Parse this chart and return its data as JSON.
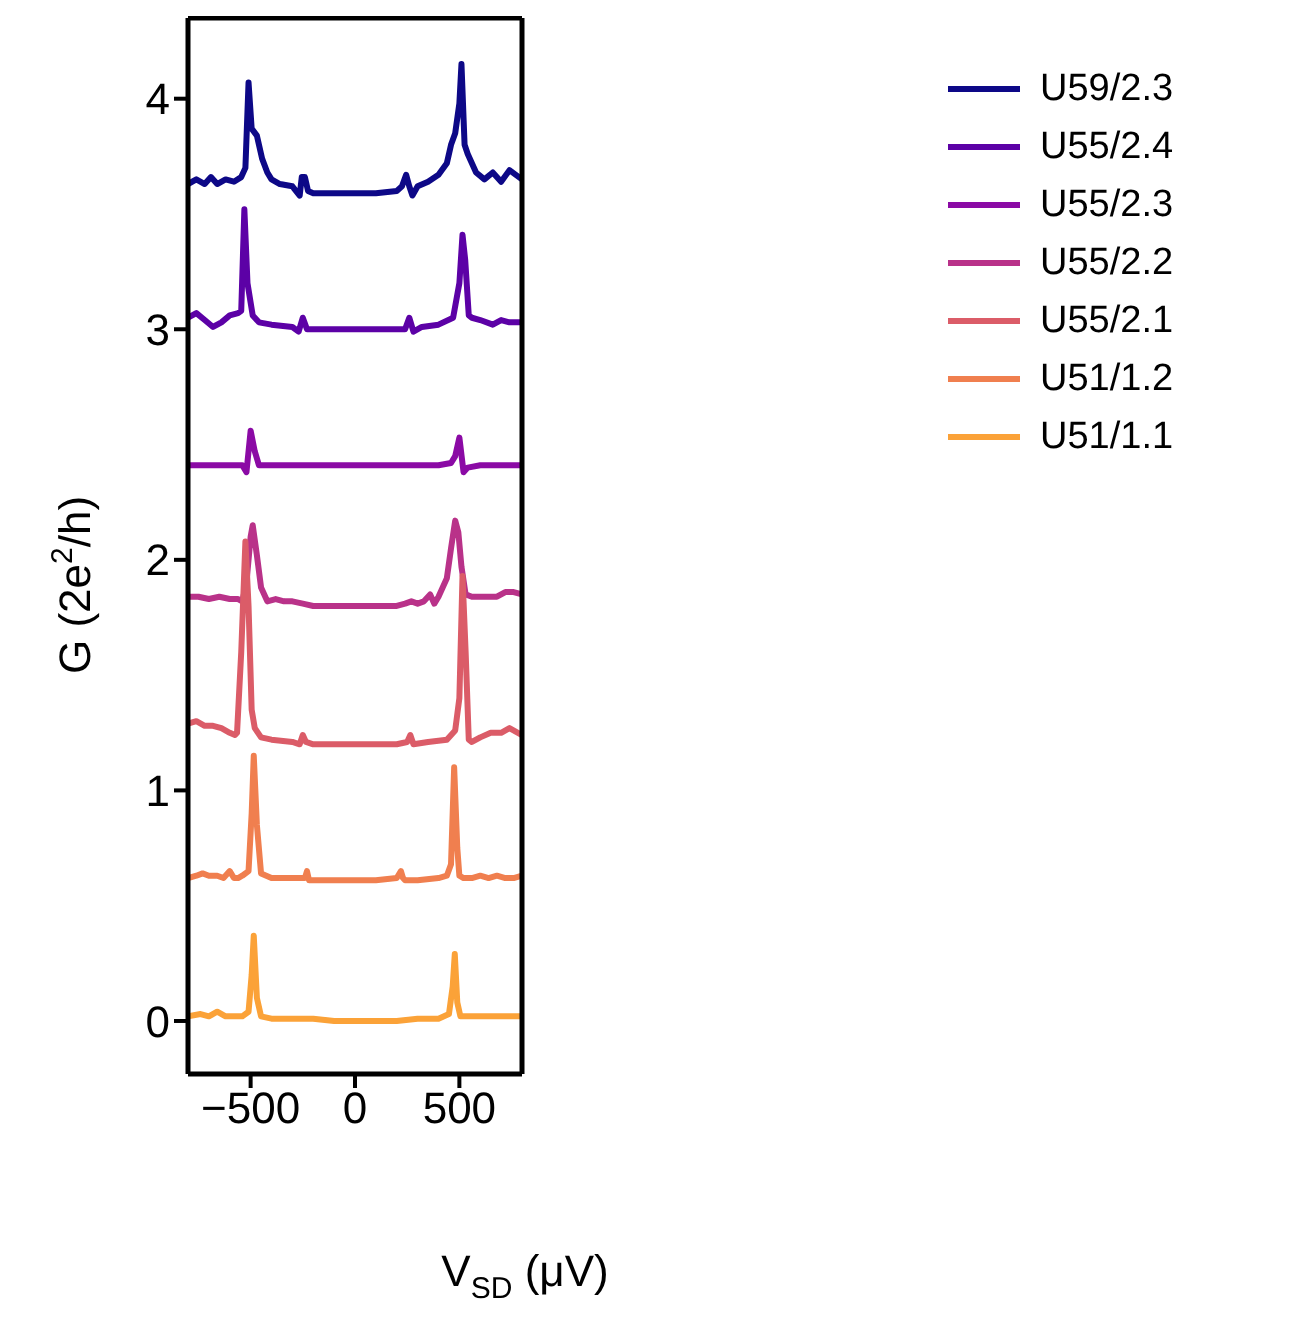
{
  "chart_data": {
    "type": "line",
    "xlabel": "V$_{SD}$ (μV)",
    "ylabel": "G (2e$^{2}$/h)",
    "xlim": [
      -800,
      800
    ],
    "xticks": [
      -500,
      0,
      500
    ],
    "ylim": [
      -0.23,
      4.35
    ],
    "yticks": [
      0,
      1,
      2,
      3,
      4
    ],
    "grid": false,
    "legend": "top right",
    "marker": "none",
    "line_style": "solid",
    "series": [
      {
        "name": "U59/2.3",
        "color": "#0d0887",
        "x": [
          -800,
          -760,
          -720,
          -690,
          -660,
          -620,
          -580,
          -545,
          -525,
          -510,
          -495,
          -470,
          -445,
          -420,
          -400,
          -360,
          -300,
          -265,
          -255,
          -240,
          -225,
          -200,
          -100,
          0,
          100,
          200,
          225,
          245,
          260,
          275,
          300,
          350,
          400,
          440,
          460,
          480,
          500,
          510,
          525,
          540,
          580,
          620,
          660,
          700,
          740,
          800
        ],
        "values": [
          3.63,
          3.65,
          3.63,
          3.66,
          3.63,
          3.65,
          3.64,
          3.66,
          3.7,
          4.07,
          3.87,
          3.84,
          3.74,
          3.68,
          3.65,
          3.63,
          3.62,
          3.58,
          3.66,
          3.66,
          3.6,
          3.59,
          3.59,
          3.59,
          3.59,
          3.6,
          3.62,
          3.67,
          3.62,
          3.58,
          3.62,
          3.64,
          3.67,
          3.72,
          3.8,
          3.85,
          3.98,
          4.15,
          3.8,
          3.76,
          3.68,
          3.65,
          3.68,
          3.64,
          3.69,
          3.65
        ]
      },
      {
        "name": "U55/2.4",
        "color": "#5c01a6",
        "x": [
          -800,
          -760,
          -720,
          -680,
          -640,
          -600,
          -560,
          -545,
          -530,
          -515,
          -490,
          -460,
          -400,
          -300,
          -270,
          -250,
          -230,
          -200,
          -100,
          0,
          100,
          200,
          240,
          260,
          280,
          320,
          400,
          470,
          500,
          515,
          528,
          545,
          560,
          600,
          660,
          700,
          740,
          800
        ],
        "values": [
          3.05,
          3.07,
          3.04,
          3.01,
          3.03,
          3.06,
          3.07,
          3.08,
          3.52,
          3.2,
          3.06,
          3.03,
          3.02,
          3.01,
          2.99,
          3.05,
          3.0,
          3.0,
          3.0,
          3.0,
          3.0,
          3.0,
          3.0,
          3.05,
          2.99,
          3.01,
          3.02,
          3.05,
          3.2,
          3.41,
          3.3,
          3.06,
          3.05,
          3.04,
          3.02,
          3.04,
          3.03,
          3.03
        ]
      },
      {
        "name": "U55/2.3",
        "color": "#8b0aa5",
        "x": [
          -800,
          -700,
          -600,
          -540,
          -520,
          -500,
          -480,
          -460,
          -400,
          -200,
          0,
          200,
          400,
          460,
          480,
          500,
          520,
          540,
          600,
          700,
          800
        ],
        "values": [
          2.41,
          2.41,
          2.41,
          2.41,
          2.38,
          2.56,
          2.47,
          2.41,
          2.41,
          2.41,
          2.41,
          2.41,
          2.41,
          2.42,
          2.45,
          2.53,
          2.38,
          2.4,
          2.41,
          2.41,
          2.41
        ]
      },
      {
        "name": "U55/2.2",
        "color": "#b93289",
        "x": [
          -800,
          -750,
          -700,
          -650,
          -600,
          -560,
          -540,
          -520,
          -500,
          -490,
          -470,
          -450,
          -420,
          -380,
          -340,
          -300,
          -250,
          -200,
          -100,
          0,
          100,
          200,
          240,
          270,
          300,
          330,
          360,
          380,
          400,
          440,
          460,
          480,
          495,
          510,
          530,
          560,
          620,
          680,
          720,
          760,
          800
        ],
        "values": [
          1.84,
          1.84,
          1.83,
          1.84,
          1.83,
          1.83,
          1.82,
          1.9,
          2.1,
          2.15,
          2.02,
          1.88,
          1.82,
          1.83,
          1.82,
          1.82,
          1.81,
          1.8,
          1.8,
          1.8,
          1.8,
          1.8,
          1.81,
          1.82,
          1.81,
          1.82,
          1.85,
          1.81,
          1.84,
          1.92,
          2.05,
          2.17,
          2.12,
          1.97,
          1.85,
          1.84,
          1.84,
          1.84,
          1.86,
          1.86,
          1.85
        ]
      },
      {
        "name": "U55/2.1",
        "color": "#db5c68",
        "x": [
          -800,
          -760,
          -720,
          -680,
          -640,
          -600,
          -575,
          -565,
          -545,
          -525,
          -510,
          -495,
          -480,
          -450,
          -400,
          -300,
          -265,
          -250,
          -235,
          -200,
          -100,
          0,
          100,
          200,
          250,
          265,
          280,
          350,
          440,
          480,
          500,
          515,
          530,
          545,
          560,
          600,
          650,
          700,
          740,
          800
        ],
        "values": [
          1.29,
          1.3,
          1.28,
          1.28,
          1.27,
          1.25,
          1.24,
          1.25,
          1.6,
          2.08,
          1.8,
          1.35,
          1.27,
          1.23,
          1.22,
          1.21,
          1.2,
          1.24,
          1.21,
          1.2,
          1.2,
          1.2,
          1.2,
          1.2,
          1.21,
          1.24,
          1.2,
          1.21,
          1.22,
          1.26,
          1.4,
          1.93,
          1.6,
          1.22,
          1.21,
          1.23,
          1.25,
          1.25,
          1.27,
          1.24
        ]
      },
      {
        "name": "U51/1.2",
        "color": "#f07f4f",
        "x": [
          -800,
          -760,
          -730,
          -700,
          -660,
          -630,
          -600,
          -580,
          -560,
          -540,
          -510,
          -495,
          -485,
          -470,
          -450,
          -400,
          -300,
          -240,
          -230,
          -220,
          -200,
          -100,
          0,
          100,
          200,
          220,
          230,
          240,
          300,
          400,
          440,
          460,
          475,
          490,
          500,
          520,
          560,
          600,
          640,
          680,
          720,
          760,
          800
        ],
        "values": [
          0.62,
          0.63,
          0.64,
          0.63,
          0.63,
          0.62,
          0.65,
          0.62,
          0.62,
          0.63,
          0.65,
          0.9,
          1.15,
          0.85,
          0.64,
          0.62,
          0.62,
          0.62,
          0.65,
          0.61,
          0.61,
          0.61,
          0.61,
          0.61,
          0.62,
          0.65,
          0.62,
          0.61,
          0.61,
          0.62,
          0.63,
          0.68,
          1.1,
          0.75,
          0.63,
          0.62,
          0.62,
          0.63,
          0.62,
          0.63,
          0.62,
          0.62,
          0.63
        ]
      },
      {
        "name": "U51/1.1",
        "color": "#fba238",
        "x": [
          -800,
          -740,
          -700,
          -660,
          -620,
          -580,
          -540,
          -510,
          -495,
          -485,
          -470,
          -450,
          -400,
          -300,
          -200,
          -100,
          0,
          100,
          200,
          300,
          400,
          450,
          468,
          478,
          490,
          505,
          540,
          600,
          660,
          720,
          800
        ],
        "values": [
          0.02,
          0.03,
          0.02,
          0.04,
          0.02,
          0.02,
          0.02,
          0.04,
          0.2,
          0.37,
          0.1,
          0.02,
          0.01,
          0.01,
          0.01,
          0.0,
          0.0,
          0.0,
          0.0,
          0.01,
          0.01,
          0.03,
          0.15,
          0.29,
          0.08,
          0.02,
          0.02,
          0.02,
          0.02,
          0.02,
          0.02
        ]
      }
    ]
  }
}
